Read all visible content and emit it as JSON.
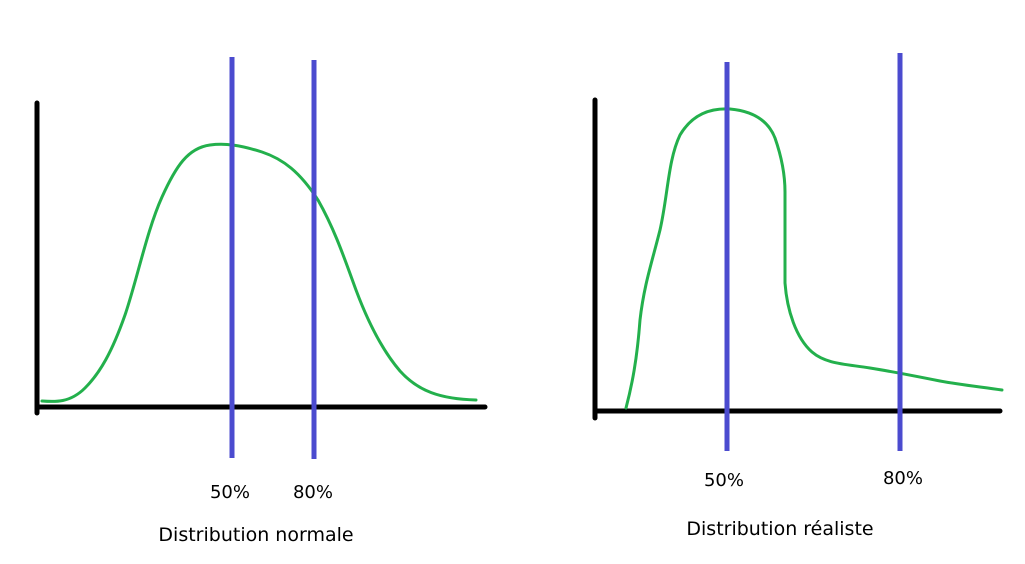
{
  "colors": {
    "axes": "#000000",
    "markers": "#4b4bcf",
    "curve": "#23b04c",
    "background": "#ffffff"
  },
  "left_panel": {
    "title": "Distribution normale",
    "marker_50": "50%",
    "marker_80": "80%",
    "curve_shape": "symmetric bell curve"
  },
  "right_panel": {
    "title": "Distribution réaliste",
    "marker_50": "50%",
    "marker_80": "80%",
    "curve_shape": "sharp peak with long right tail"
  }
}
